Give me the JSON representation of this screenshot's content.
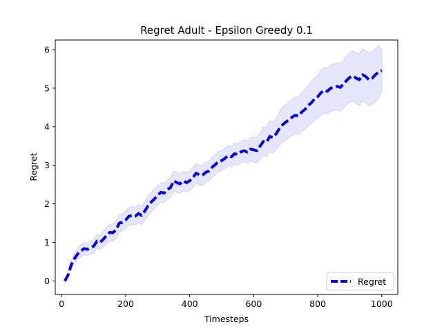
{
  "chart_data": {
    "type": "line",
    "title": "Regret Adult - Epsilon Greedy 0.1",
    "xlabel": "Timesteps",
    "ylabel": "Regret",
    "xlim": [
      -20,
      1050
    ],
    "ylim": [
      -0.35,
      6.25
    ],
    "xticks": [
      0,
      200,
      400,
      600,
      800,
      1000
    ],
    "yticks": [
      0,
      1,
      2,
      3,
      4,
      5,
      6
    ],
    "grid": false,
    "legend": {
      "position": "bottom-right",
      "entries": [
        "Regret"
      ]
    },
    "colors": {
      "line": "#0000ee",
      "band": "#e6e6ff",
      "band_edge": "#c8c8ff"
    },
    "series": [
      {
        "name": "Regret",
        "style": "dashed",
        "x": [
          10,
          20,
          30,
          40,
          50,
          60,
          70,
          80,
          90,
          100,
          110,
          120,
          130,
          140,
          150,
          160,
          170,
          180,
          190,
          200,
          210,
          220,
          230,
          240,
          250,
          260,
          270,
          280,
          290,
          300,
          310,
          320,
          330,
          340,
          350,
          360,
          370,
          380,
          390,
          400,
          410,
          420,
          430,
          440,
          450,
          460,
          470,
          480,
          490,
          500,
          510,
          520,
          530,
          540,
          550,
          560,
          570,
          580,
          590,
          600,
          610,
          620,
          630,
          640,
          650,
          660,
          670,
          680,
          690,
          700,
          710,
          720,
          730,
          740,
          750,
          760,
          770,
          780,
          790,
          800,
          810,
          820,
          830,
          840,
          850,
          860,
          870,
          880,
          890,
          900,
          910,
          920,
          930,
          940,
          950,
          960,
          970,
          980,
          990,
          1000
        ],
        "y": [
          0.0,
          0.15,
          0.42,
          0.58,
          0.7,
          0.78,
          0.84,
          0.82,
          0.86,
          0.9,
          1.03,
          1.0,
          1.08,
          1.18,
          1.26,
          1.25,
          1.33,
          1.5,
          1.52,
          1.58,
          1.68,
          1.7,
          1.68,
          1.75,
          1.7,
          1.82,
          1.95,
          2.05,
          2.13,
          2.22,
          2.3,
          2.28,
          2.37,
          2.42,
          2.6,
          2.55,
          2.52,
          2.6,
          2.55,
          2.6,
          2.68,
          2.8,
          2.75,
          2.74,
          2.82,
          2.85,
          2.95,
          3.02,
          3.1,
          3.12,
          3.18,
          3.25,
          3.22,
          3.3,
          3.28,
          3.35,
          3.38,
          3.34,
          3.42,
          3.4,
          3.38,
          3.5,
          3.62,
          3.6,
          3.75,
          3.72,
          3.82,
          3.95,
          4.05,
          4.12,
          4.18,
          4.25,
          4.3,
          4.28,
          4.38,
          4.45,
          4.55,
          4.62,
          4.72,
          4.78,
          4.88,
          4.95,
          4.92,
          5.0,
          5.02,
          5.05,
          5.02,
          5.1,
          5.2,
          5.28,
          5.32,
          5.26,
          5.22,
          5.35,
          5.3,
          5.22,
          5.26,
          5.35,
          5.42,
          5.46
        ]
      }
    ],
    "band": {
      "lower": [
        -0.05,
        0.08,
        0.3,
        0.45,
        0.55,
        0.62,
        0.68,
        0.66,
        0.7,
        0.72,
        0.85,
        0.82,
        0.88,
        0.97,
        1.05,
        1.04,
        1.1,
        1.28,
        1.3,
        1.35,
        1.45,
        1.47,
        1.45,
        1.52,
        1.46,
        1.58,
        1.7,
        1.8,
        1.88,
        1.97,
        2.05,
        2.03,
        2.12,
        2.17,
        2.35,
        2.3,
        2.27,
        2.35,
        2.3,
        2.35,
        2.43,
        2.55,
        2.5,
        2.48,
        2.56,
        2.59,
        2.69,
        2.76,
        2.84,
        2.86,
        2.92,
        2.99,
        2.96,
        3.03,
        3.0,
        3.07,
        3.1,
        3.05,
        3.12,
        3.08,
        3.05,
        3.15,
        3.25,
        3.22,
        3.35,
        3.32,
        3.42,
        3.52,
        3.6,
        3.66,
        3.72,
        3.78,
        3.82,
        3.8,
        3.88,
        3.94,
        4.03,
        4.08,
        4.17,
        4.22,
        4.3,
        4.36,
        4.33,
        4.4,
        4.42,
        4.44,
        4.4,
        4.48,
        4.57,
        4.64,
        4.67,
        4.6,
        4.56,
        4.68,
        4.62,
        4.54,
        4.58,
        4.66,
        4.74,
        4.92
      ],
      "upper": [
        0.05,
        0.22,
        0.54,
        0.71,
        0.85,
        0.94,
        1.0,
        0.98,
        1.02,
        1.08,
        1.21,
        1.18,
        1.28,
        1.39,
        1.47,
        1.46,
        1.56,
        1.72,
        1.74,
        1.81,
        1.91,
        1.93,
        1.91,
        1.98,
        1.94,
        2.06,
        2.2,
        2.3,
        2.38,
        2.47,
        2.55,
        2.53,
        2.62,
        2.67,
        2.85,
        2.8,
        2.77,
        2.85,
        2.8,
        2.85,
        2.93,
        3.05,
        3.0,
        3.0,
        3.08,
        3.11,
        3.21,
        3.28,
        3.36,
        3.38,
        3.44,
        3.51,
        3.48,
        3.57,
        3.56,
        3.63,
        3.66,
        3.63,
        3.72,
        3.72,
        3.71,
        3.85,
        3.99,
        3.98,
        4.15,
        4.12,
        4.22,
        4.38,
        4.5,
        4.58,
        4.64,
        4.72,
        4.78,
        4.76,
        4.88,
        4.96,
        5.07,
        5.16,
        5.27,
        5.34,
        5.46,
        5.54,
        5.51,
        5.6,
        5.62,
        5.66,
        5.64,
        5.72,
        5.83,
        5.92,
        5.97,
        5.92,
        5.88,
        6.02,
        5.98,
        5.9,
        5.94,
        6.04,
        6.1,
        6.0
      ]
    }
  }
}
